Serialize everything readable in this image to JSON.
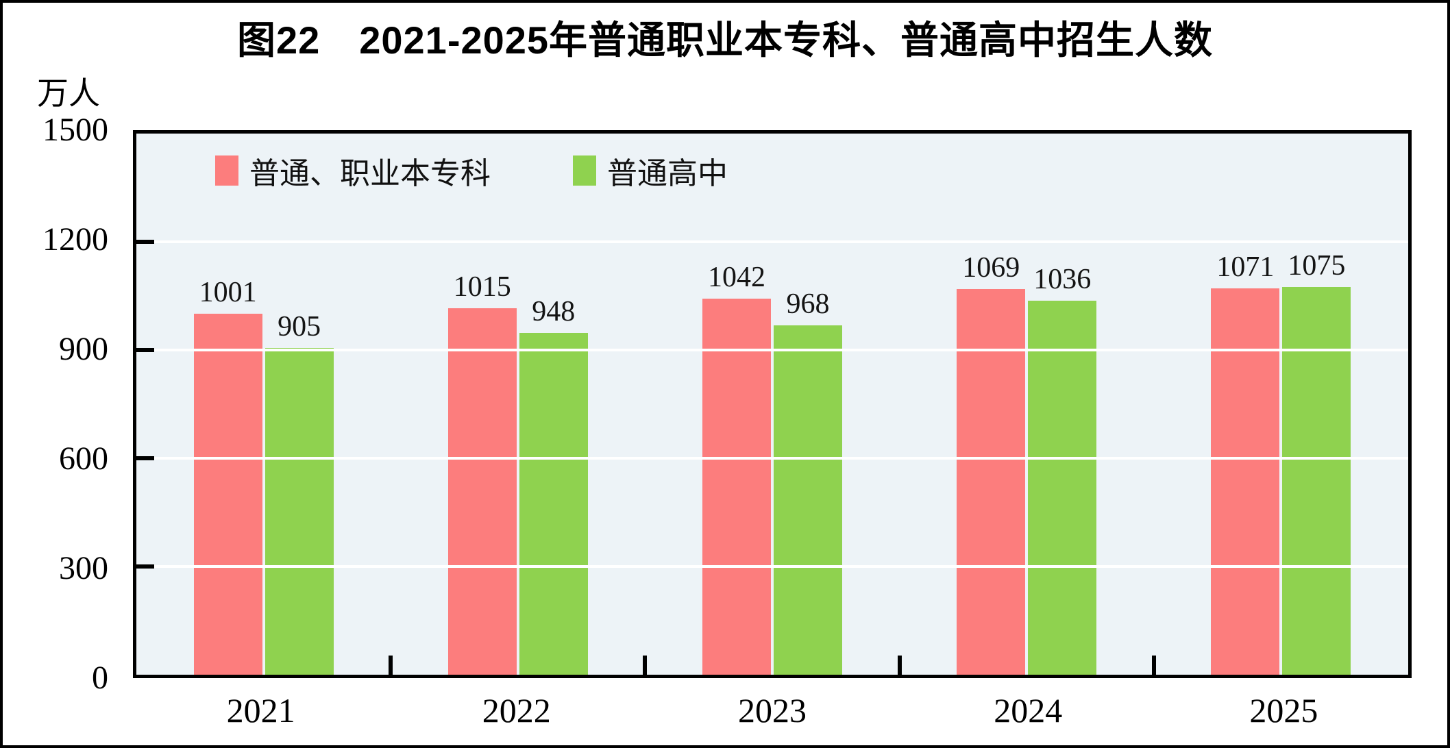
{
  "title": "图22　2021-2025年普通职业本专科、普通高中招生人数",
  "unit_label": "万人",
  "colors": {
    "series1": "#fc7d7d",
    "series2": "#8fd24f",
    "plot_bg": "#edf3f7",
    "gridline": "#ffffff",
    "axis": "#000000",
    "text": "#000000"
  },
  "chart_data": {
    "type": "bar",
    "title": "图22　2021-2025年普通职业本专科、普通高中招生人数",
    "categories": [
      "2021",
      "2022",
      "2023",
      "2024",
      "2025"
    ],
    "series": [
      {
        "name": "普通、职业本专科",
        "color": "#fc7d7d",
        "values": [
          1001,
          1015,
          1042,
          1069,
          1071
        ]
      },
      {
        "name": "普通高中",
        "color": "#8fd24f",
        "values": [
          905,
          948,
          968,
          1036,
          1075
        ]
      }
    ],
    "xlabel": "",
    "ylabel": "万人",
    "ylim": [
      0,
      1500
    ],
    "y_ticks": [
      0,
      300,
      600,
      900,
      1200,
      1500
    ],
    "grid": true,
    "legend_position": "top-left-inside"
  }
}
